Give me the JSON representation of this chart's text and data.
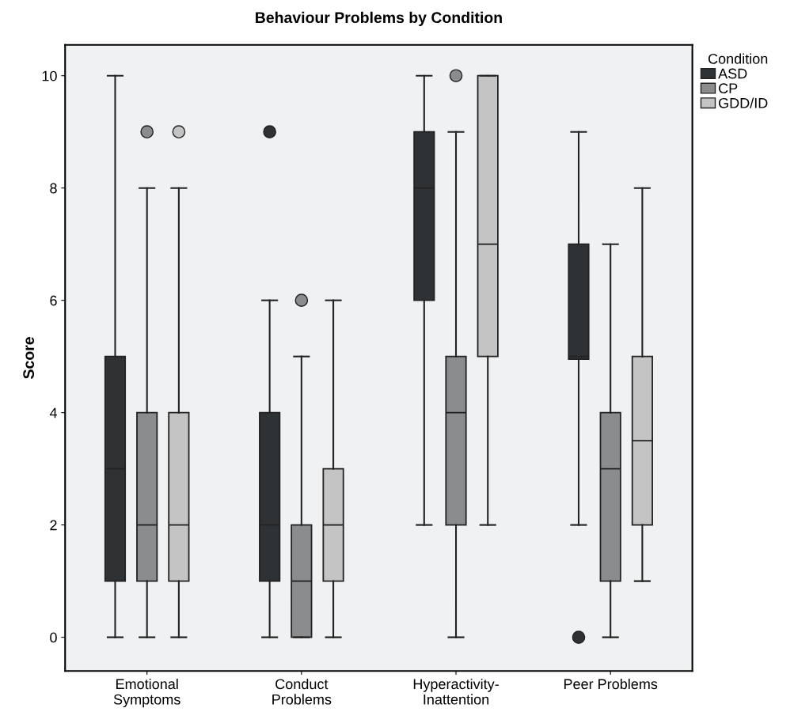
{
  "chart_data": {
    "type": "box",
    "title": "Behaviour Problems by Condition",
    "ylabel": "Score",
    "legend_title": "Condition",
    "legend": "top right",
    "grid": false,
    "marker": "circle",
    "categories": [
      "Emotional\nSymptoms",
      "Conduct\nProblems",
      "Hyperactivity-\nInattention",
      "Peer Problems"
    ],
    "ylim": [
      -0.6,
      10.55
    ],
    "yticks": [
      0,
      2,
      4,
      6,
      8,
      10
    ],
    "series": [
      {
        "name": "ASD",
        "color": "#2f3235",
        "boxes": [
          {
            "low": 0,
            "q1": 1,
            "median": 3,
            "q3": 5,
            "high": 10
          },
          {
            "low": 0,
            "q1": 1,
            "median": 2,
            "q3": 4,
            "high": 6,
            "outliers": [
              9
            ]
          },
          {
            "low": 2,
            "q1": 6,
            "median": 8,
            "q3": 9,
            "high": 10
          },
          {
            "low": 2,
            "q1": 4.95,
            "median": 5,
            "q3": 7,
            "high": 9,
            "outliers": [
              0
            ]
          }
        ]
      },
      {
        "name": "CP",
        "color": "#8b8c8e",
        "boxes": [
          {
            "low": 0,
            "q1": 1,
            "median": 2,
            "q3": 4,
            "high": 8,
            "outliers": [
              9
            ]
          },
          {
            "low": 0,
            "q1": 0,
            "median": 1,
            "q3": 2,
            "high": 5,
            "outliers": [
              6
            ]
          },
          {
            "low": 0,
            "q1": 2,
            "median": 4,
            "q3": 5,
            "high": 9,
            "outliers": [
              10
            ]
          },
          {
            "low": 0,
            "q1": 1,
            "median": 3,
            "q3": 4,
            "high": 7
          }
        ]
      },
      {
        "name": "GDD/ID",
        "color": "#c3c4c3",
        "boxes": [
          {
            "low": 0,
            "q1": 1,
            "median": 2,
            "q3": 4,
            "high": 8,
            "outliers": [
              9
            ]
          },
          {
            "low": 0,
            "q1": 1,
            "median": 2,
            "q3": 3,
            "high": 6
          },
          {
            "low": 2,
            "q1": 5,
            "median": 7,
            "q3": 10,
            "high": 10
          },
          {
            "low": 1,
            "q1": 2,
            "median": 3.5,
            "q3": 5,
            "high": 8
          }
        ]
      }
    ]
  }
}
